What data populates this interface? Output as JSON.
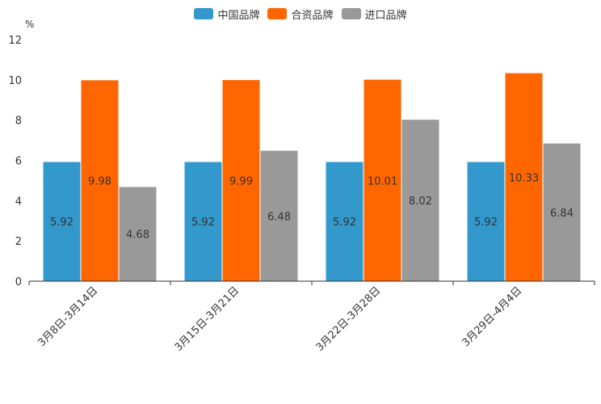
{
  "chart_data": {
    "type": "bar",
    "ylabel": "%",
    "ylim": [
      0,
      12
    ],
    "yticks": [
      "0",
      "2",
      "4",
      "6",
      "8",
      "10",
      "12"
    ],
    "categories": [
      "3月8日-3月14日",
      "3月15日-3月21日",
      "3月22日-3月28日",
      "3月29日-4月4日"
    ],
    "series": [
      {
        "name": "中国品牌",
        "color": "#3399cc",
        "values": [
          5.92,
          5.92,
          5.92,
          5.92
        ],
        "labels": [
          "5.92",
          "5.92",
          "5.92",
          "5.92"
        ]
      },
      {
        "name": "合资品牌",
        "color": "#ff6600",
        "values": [
          9.98,
          9.99,
          10.01,
          10.33
        ],
        "labels": [
          "9.98",
          "9.99",
          "10.01",
          "10.33"
        ]
      },
      {
        "name": "进口品牌",
        "color": "#999999",
        "values": [
          4.68,
          6.48,
          8.02,
          6.84
        ],
        "labels": [
          "4.68",
          "6.48",
          "8.02",
          "6.84"
        ]
      }
    ],
    "legend_position": "top-center",
    "grid": false
  }
}
